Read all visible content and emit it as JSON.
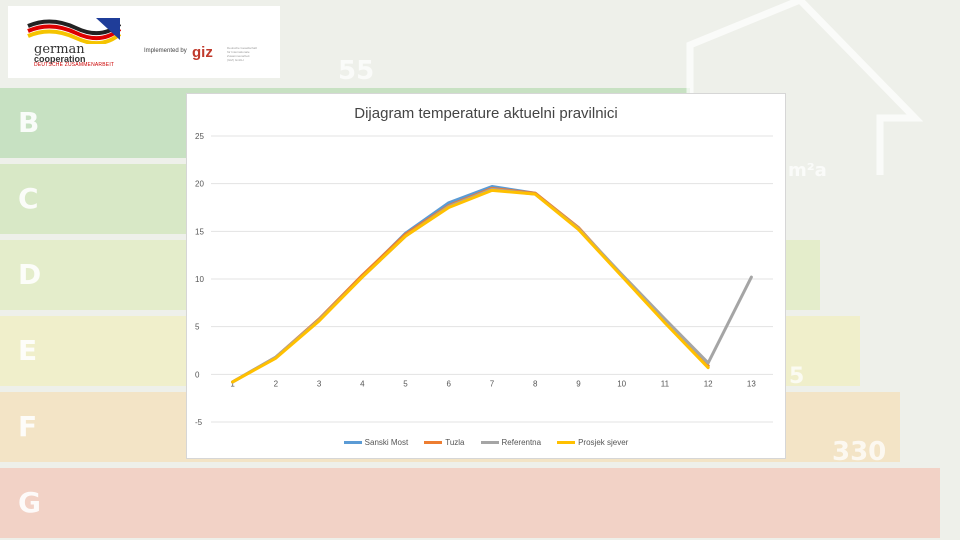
{
  "background": {
    "bands": [
      {
        "letter": "B",
        "color": "#a8d5a0"
      },
      {
        "letter": "C",
        "color": "#c7e2a8"
      },
      {
        "letter": "D",
        "color": "#dcebb0"
      },
      {
        "letter": "E",
        "color": "#f2eeb0"
      },
      {
        "letter": "F",
        "color": "#f7dba8"
      },
      {
        "letter": "G",
        "color": "#f5b9a8"
      }
    ],
    "numbers": [
      "55",
      "330"
    ],
    "unit_fragment": "m²a",
    "edge_fragment": "5"
  },
  "logo": {
    "german": "german",
    "cooperation": "cooperation",
    "deutsche": "DEUTSCHE ZUSAMMENARBEIT",
    "implemented_by": "Implemented by",
    "giz": "giz",
    "giz_sub": "Deutsche Gesellschaft für Internationale Zusammenarbeit (GIZ) GmbH"
  },
  "chart_data": {
    "type": "line",
    "title": "Dijagram temperature aktuelni pravilnici",
    "categories": [
      "1",
      "2",
      "3",
      "4",
      "5",
      "6",
      "7",
      "8",
      "9",
      "10",
      "11",
      "12",
      "13"
    ],
    "ylim": [
      -5,
      25
    ],
    "yticks": [
      -5,
      0,
      5,
      10,
      15,
      20,
      25
    ],
    "grid": true,
    "legend_position": "bottom",
    "series": [
      {
        "name": "Sanski Most",
        "color": "#5b9bd5",
        "values": [
          -0.8,
          1.8,
          5.7,
          10.3,
          14.8,
          18.0,
          19.7,
          19.0,
          15.3,
          10.4,
          5.5,
          0.9,
          null
        ]
      },
      {
        "name": "Tuzla",
        "color": "#ed7d31",
        "values": [
          -0.8,
          1.8,
          5.8,
          10.4,
          14.7,
          17.7,
          19.5,
          19.0,
          15.4,
          10.4,
          5.6,
          0.9,
          null
        ]
      },
      {
        "name": "Referentna",
        "color": "#a5a5a5",
        "values": [
          -0.8,
          1.8,
          5.7,
          10.2,
          14.5,
          17.6,
          19.4,
          18.9,
          15.3,
          10.5,
          5.8,
          1.2,
          10.2
        ]
      },
      {
        "name": "Prosjek sjever",
        "color": "#ffc000",
        "values": [
          -0.8,
          1.7,
          5.6,
          10.2,
          14.5,
          17.5,
          19.3,
          18.9,
          15.2,
          10.3,
          5.4,
          0.7,
          null
        ]
      }
    ]
  }
}
